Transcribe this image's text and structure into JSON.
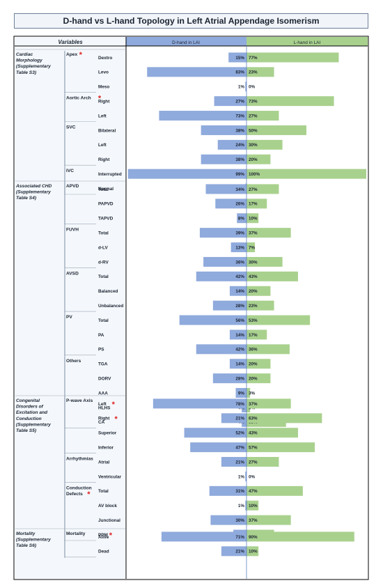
{
  "title": "D-hand vs L-hand Topology in Left Atrial Appendage Isomerism",
  "header": {
    "variables": "Variables",
    "d_hand": "D-hand in LAI",
    "l_hand": "L-hand in LAI"
  },
  "colors": {
    "d_bar": "#8faadc",
    "l_bar": "#a9d18e",
    "star": "#e02020",
    "panel_border": "#000000",
    "left_panel_bg": "#f4f8fc",
    "center_line": "#5b7fc0"
  },
  "chart_data": {
    "type": "bar",
    "title": "D-hand vs L-hand Topology in Left Atrial Appendage Isomerism",
    "orientation": "horizontal-diverging",
    "value_unit": "%",
    "series": [
      {
        "name": "D-hand in LAI",
        "color": "#8faadc"
      },
      {
        "name": "L-hand in LAI",
        "color": "#a9d18e"
      }
    ],
    "sections": [
      {
        "label": "Cardiac Morphology (Supplementary Table S3)",
        "groups": [
          {
            "label": "Apex",
            "star": true,
            "rows": [
              {
                "label": "Dextro",
                "d": 15,
                "l": 77
              },
              {
                "label": "Levo",
                "d": 83,
                "l": 23
              },
              {
                "label": "Meso",
                "d": 1,
                "l": 0
              }
            ]
          },
          {
            "label": "Aortic Arch",
            "star": true,
            "rows": [
              {
                "label": "Right",
                "d": 27,
                "l": 73
              },
              {
                "label": "Left",
                "d": 73,
                "l": 27
              }
            ]
          },
          {
            "label": "SVC",
            "rows": [
              {
                "label": "Bilateral",
                "d": 38,
                "l": 50
              },
              {
                "label": "Left",
                "d": 24,
                "l": 30
              },
              {
                "label": "Right",
                "d": 38,
                "l": 20
              }
            ]
          },
          {
            "label": "IVC",
            "rows": [
              {
                "label": "Interrupted",
                "d": 99,
                "l": 100
              },
              {
                "label": "Normal",
                "d": 1,
                "l": 0
              }
            ]
          }
        ]
      },
      {
        "label": "Associated CHD (Supplementary Table S4)",
        "groups": [
          {
            "label": "APVD",
            "rows": [
              {
                "label": "Total",
                "d": 34,
                "l": 27
              },
              {
                "label": "PAPVD",
                "d": 26,
                "l": 17
              },
              {
                "label": "TAPVD",
                "d": 8,
                "l": 10
              }
            ]
          },
          {
            "label": "FUVH",
            "rows": [
              {
                "label": "Total",
                "d": 39,
                "l": 37
              },
              {
                "label": "d-LV",
                "d": 13,
                "l": 7
              },
              {
                "label": "d-RV",
                "d": 36,
                "l": 30
              }
            ]
          },
          {
            "label": "AVSD",
            "rows": [
              {
                "label": "Total",
                "d": 42,
                "l": 43
              },
              {
                "label": "Balanced",
                "d": 14,
                "l": 20
              },
              {
                "label": "Unbalanced",
                "d": 28,
                "l": 23
              }
            ]
          },
          {
            "label": "PV",
            "rows": [
              {
                "label": "Total",
                "d": 56,
                "l": 53
              },
              {
                "label": "PA",
                "d": 14,
                "l": 17
              },
              {
                "label": "PS",
                "d": 42,
                "l": 36
              }
            ]
          },
          {
            "label": "Others",
            "rows": [
              {
                "label": "TGA",
                "d": 14,
                "l": 20
              },
              {
                "label": "DORV",
                "d": 28,
                "l": 20
              },
              {
                "label": "AAA",
                "d": 9,
                "l": 3
              },
              {
                "label": "HLHS",
                "d": 4,
                "l": 3
              },
              {
                "label": "CA",
                "d": 4,
                "l": 33
              }
            ]
          }
        ]
      },
      {
        "label": "Congenital Disorders of Excitation and Conduction (Supplementary Table S5)",
        "groups": [
          {
            "label": "P-wave Axis",
            "rows": [
              {
                "label": "Left",
                "star": true,
                "d": 78,
                "l": 37
              },
              {
                "label": "Right",
                "star": true,
                "d": 21,
                "l": 63
              },
              {
                "label": "Superior",
                "d": 52,
                "l": 43
              },
              {
                "label": "Inferior",
                "d": 47,
                "l": 57
              }
            ]
          },
          {
            "label": "Arrhythmias",
            "rows": [
              {
                "label": "Atrial",
                "d": 21,
                "l": 27
              },
              {
                "label": "Ventricular",
                "d": 1,
                "l": 0
              }
            ]
          },
          {
            "label": "Conduction Defects",
            "star": true,
            "rows": [
              {
                "label": "Total",
                "d": 31,
                "l": 47
              },
              {
                "label": "AV block",
                "d": 1,
                "l": 10
              },
              {
                "label": "Junctional",
                "d": 30,
                "l": 37
              },
              {
                "label": "PPM",
                "star": true,
                "d": 11,
                "l": 23
              }
            ]
          }
        ]
      },
      {
        "label": "Mortality (Supplementary Table S6)",
        "groups": [
          {
            "label": "Mortality",
            "rows": [
              {
                "label": "Alive",
                "d": 71,
                "l": 90
              },
              {
                "label": "Dead",
                "d": 21,
                "l": 10
              }
            ]
          }
        ]
      }
    ]
  }
}
